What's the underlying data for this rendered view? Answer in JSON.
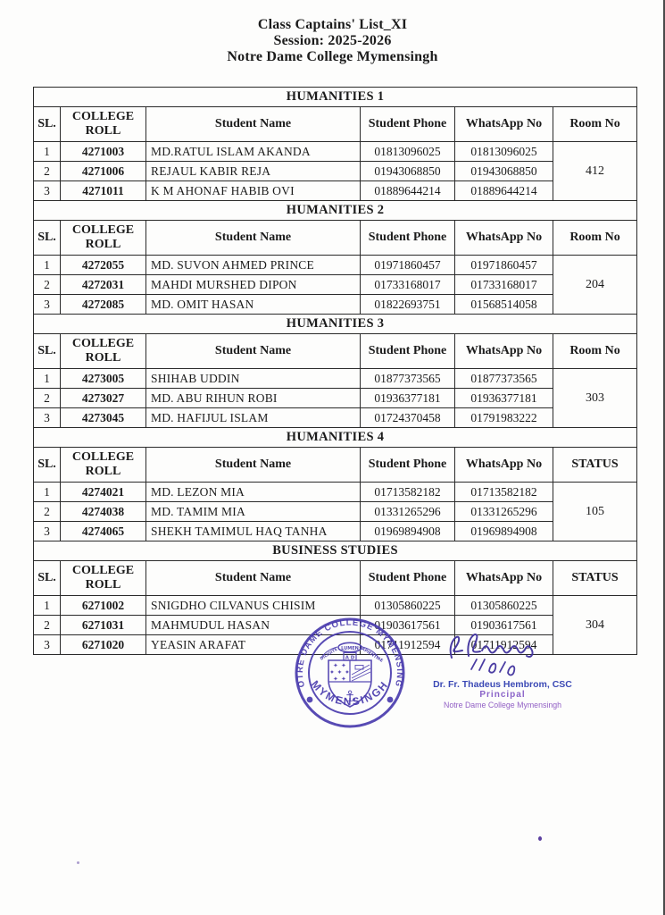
{
  "document": {
    "title": "Class Captains' List_XI",
    "session": "Session: 2025-2026",
    "college": "Notre Dame College Mymensingh"
  },
  "sections": [
    {
      "title": "HUMANITIES 1",
      "columns": [
        "SL.",
        "COLLEGE ROLL",
        "Student Name",
        "Student Phone",
        "WhatsApp No",
        "Room No"
      ],
      "room": "412",
      "rows": [
        {
          "sl": "1",
          "roll": "4271003",
          "name": "MD.RATUL ISLAM AKANDA",
          "phone": "01813096025",
          "whatsapp": "01813096025"
        },
        {
          "sl": "2",
          "roll": "4271006",
          "name": "REJAUL KABIR REJA",
          "phone": "01943068850",
          "whatsapp": "01943068850"
        },
        {
          "sl": "3",
          "roll": "4271011",
          "name": "K M AHONAF HABIB OVI",
          "phone": "01889644214",
          "whatsapp": "01889644214"
        }
      ]
    },
    {
      "title": "HUMANITIES 2",
      "columns": [
        "SL.",
        "COLLEGE ROLL",
        "Student Name",
        "Student Phone",
        "WhatsApp No",
        "Room No"
      ],
      "room": "204",
      "rows": [
        {
          "sl": "1",
          "roll": "4272055",
          "name": "MD. SUVON AHMED PRINCE",
          "phone": "01971860457",
          "whatsapp": "01971860457"
        },
        {
          "sl": "2",
          "roll": "4272031",
          "name": "MAHDI MURSHED DIPON",
          "phone": "01733168017",
          "whatsapp": "01733168017"
        },
        {
          "sl": "3",
          "roll": "4272085",
          "name": "MD. OMIT HASAN",
          "phone": "01822693751",
          "whatsapp": "01568514058"
        }
      ]
    },
    {
      "title": "HUMANITIES 3",
      "columns": [
        "SL.",
        "COLLEGE ROLL",
        "Student Name",
        "Student Phone",
        "WhatsApp No",
        "Room No"
      ],
      "room": "303",
      "rows": [
        {
          "sl": "1",
          "roll": "4273005",
          "name": "SHIHAB UDDIN",
          "phone": "01877373565",
          "whatsapp": "01877373565"
        },
        {
          "sl": "2",
          "roll": "4273027",
          "name": "MD. ABU RIHUN ROBI",
          "phone": "01936377181",
          "whatsapp": "01936377181"
        },
        {
          "sl": "3",
          "roll": "4273045",
          "name": "MD. HAFIJUL ISLAM",
          "phone": "01724370458",
          "whatsapp": "01791983222"
        }
      ]
    },
    {
      "title": "HUMANITIES 4",
      "columns": [
        "SL.",
        "COLLEGE ROLL",
        "Student Name",
        "Student Phone",
        "WhatsApp No",
        "STATUS"
      ],
      "room": "105",
      "rows": [
        {
          "sl": "1",
          "roll": "4274021",
          "name": "MD. LEZON MIA",
          "phone": "01713582182",
          "whatsapp": "01713582182"
        },
        {
          "sl": "2",
          "roll": "4274038",
          "name": "MD. TAMIM MIA",
          "phone": "01331265296",
          "whatsapp": "01331265296"
        },
        {
          "sl": "3",
          "roll": "4274065",
          "name": "SHEKH TAMIMUL HAQ  TANHA",
          "phone": "01969894908",
          "whatsapp": "01969894908"
        }
      ]
    },
    {
      "title": "BUSINESS STUDIES",
      "columns": [
        "SL.",
        "COLLEGE ROLL",
        "Student Name",
        "Student Phone",
        "WhatsApp No",
        "STATUS"
      ],
      "room": "304",
      "rows": [
        {
          "sl": "1",
          "roll": "6271002",
          "name": "SNIGDHO CILVANUS CHISIM",
          "phone": "01305860225",
          "whatsapp": "01305860225"
        },
        {
          "sl": "2",
          "roll": "6271031",
          "name": "MAHMUDUL HASAN",
          "phone": "01903617561",
          "whatsapp": "01903617561"
        },
        {
          "sl": "3",
          "roll": "6271020",
          "name": "YEASIN ARAFAT",
          "phone": "01711912594",
          "whatsapp": "01711912594"
        }
      ]
    }
  ],
  "stamp": {
    "ring_text_top": "NOTRE DAME COLLEGE MYMENSINGH",
    "ring_text_bottom": "MYMENSINGH",
    "banner_text": "LUMEN",
    "motto_left": "DILIGITE",
    "motto_right": "SAPIENTIAE",
    "monogram": "A D",
    "anchor_glyph": "⚓",
    "ink_color": "#4b3cae"
  },
  "signature": {
    "name": "Dr. Fr. Thadeus Hembrom, CSC",
    "role": "Principal",
    "org": "Notre Dame College Mymensingh",
    "name_color": "#3b49b5",
    "role_color": "#8a63c8",
    "org_color": "#9260c5",
    "ink_color": "#41329e"
  },
  "theme": {
    "stamp-ink": "#4b3cae",
    "sig-ink": "#41329e",
    "name-blue": "#3b49b5",
    "role-purple": "#8a63c8",
    "org-purple": "#9260c5"
  }
}
